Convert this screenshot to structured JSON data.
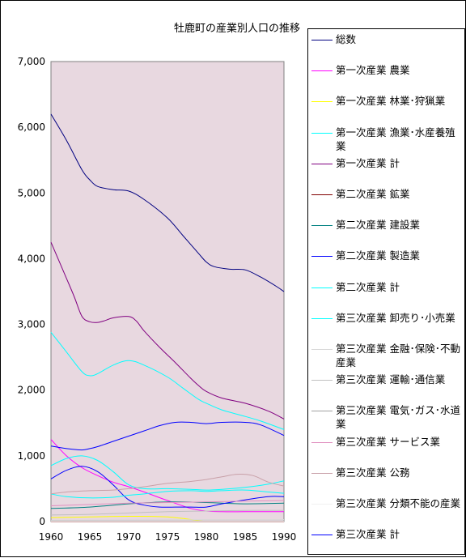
{
  "chart_data": {
    "type": "line",
    "title": "牡鹿町の産業別人口の推移",
    "xlabel": "",
    "ylabel": "",
    "x_ticks": [
      "1960",
      "1965",
      "1970",
      "1975",
      "1980",
      "1985",
      "1990"
    ],
    "y_ticks": [
      "0",
      "1,000",
      "2,000",
      "3,000",
      "4,000",
      "5,000",
      "6,000",
      "7,000"
    ],
    "xlim": [
      1960,
      1990
    ],
    "ylim": [
      0,
      7000
    ],
    "plot_background": "#e8d8e0",
    "legend_position": "right",
    "series": [
      {
        "name": "総数",
        "color": "#000080",
        "x": [
          1960,
          1962,
          1964,
          1965,
          1966,
          1968,
          1970,
          1972,
          1975,
          1977,
          1979,
          1980,
          1981,
          1983,
          1985,
          1987,
          1989,
          1990
        ],
        "values": [
          6200,
          5800,
          5350,
          5200,
          5100,
          5050,
          5030,
          4900,
          4620,
          4350,
          4080,
          3950,
          3880,
          3840,
          3830,
          3720,
          3580,
          3500
        ]
      },
      {
        "name": "第一次産業 農業",
        "color": "#ff00ff",
        "x": [
          1960,
          1962,
          1964,
          1966,
          1968,
          1970,
          1972,
          1975,
          1978,
          1980,
          1982,
          1985,
          1988,
          1990
        ],
        "values": [
          1250,
          1000,
          820,
          700,
          600,
          530,
          450,
          320,
          200,
          160,
          150,
          150,
          150,
          150
        ]
      },
      {
        "name": "第一次産業 林業･狩猟業",
        "color": "#ffff00",
        "x": [
          1960,
          1965,
          1970,
          1975,
          1980
        ],
        "values": [
          60,
          70,
          80,
          70,
          0
        ]
      },
      {
        "name": "第一次産業 漁業･水産養殖業",
        "color": "#00ffff",
        "x": [
          1960,
          1962,
          1964,
          1965,
          1966,
          1968,
          1970,
          1972,
          1975,
          1977,
          1979,
          1980,
          1982,
          1985,
          1987,
          1990
        ],
        "values": [
          2880,
          2580,
          2280,
          2220,
          2250,
          2380,
          2450,
          2380,
          2200,
          2030,
          1860,
          1800,
          1700,
          1600,
          1530,
          1400
        ]
      },
      {
        "name": "第一次産業 計",
        "color": "#800080",
        "x": [
          1960,
          1962,
          1963,
          1964,
          1965,
          1966,
          1967,
          1968,
          1970,
          1971,
          1972,
          1974,
          1976,
          1978,
          1979,
          1980,
          1982,
          1985,
          1988,
          1990
        ],
        "values": [
          4250,
          3700,
          3420,
          3120,
          3040,
          3030,
          3060,
          3100,
          3120,
          3050,
          2900,
          2650,
          2420,
          2180,
          2070,
          1980,
          1880,
          1800,
          1680,
          1560
        ]
      },
      {
        "name": "第二次産業 鉱業",
        "color": "#800000",
        "x": [
          1960,
          1970,
          1980,
          1990
        ],
        "values": [
          0,
          0,
          0,
          0
        ]
      },
      {
        "name": "第二次産業 建設業",
        "color": "#008080",
        "x": [
          1960,
          1965,
          1970,
          1975,
          1980,
          1985,
          1990
        ],
        "values": [
          200,
          220,
          270,
          300,
          290,
          270,
          280
        ]
      },
      {
        "name": "第二次産業 製造業",
        "color": "#0000ff",
        "x": [
          1960,
          1962,
          1964,
          1966,
          1968,
          1970,
          1972,
          1974,
          1976,
          1978,
          1980,
          1982,
          1985,
          1988,
          1990
        ],
        "values": [
          650,
          780,
          840,
          760,
          560,
          330,
          250,
          220,
          220,
          220,
          220,
          270,
          330,
          380,
          380
        ]
      },
      {
        "name": "第二次産業 計",
        "color": "#00ffff",
        "x": [
          1960,
          1962,
          1964,
          1966,
          1968,
          1970,
          1972,
          1975,
          1978,
          1980,
          1982,
          1985,
          1988,
          1990
        ],
        "values": [
          850,
          960,
          1000,
          930,
          760,
          560,
          500,
          500,
          490,
          480,
          490,
          520,
          570,
          620
        ]
      },
      {
        "name": "第三次産業 卸売り･小売業",
        "color": "#00ffff",
        "x": [
          1960,
          1962,
          1965,
          1968,
          1970,
          1972,
          1975,
          1978,
          1980,
          1982,
          1985,
          1988,
          1990
        ],
        "values": [
          420,
          380,
          360,
          370,
          400,
          420,
          460,
          470,
          460,
          470,
          480,
          450,
          430
        ]
      },
      {
        "name": "第三次産業 金融･保険･不動産業",
        "color": "#d8d8d8",
        "x": [
          1960,
          1970,
          1980,
          1990
        ],
        "values": [
          20,
          25,
          30,
          30
        ]
      },
      {
        "name": "第三次産業 運輸･通信業",
        "color": "#c0c0c0",
        "x": [
          1960,
          1965,
          1970,
          1975,
          1980,
          1985,
          1990
        ],
        "values": [
          100,
          110,
          130,
          150,
          160,
          170,
          170
        ]
      },
      {
        "name": "第三次産業 電気･ガス･水道業",
        "color": "#a0a0a0",
        "x": [
          1960,
          1970,
          1980,
          1990
        ],
        "values": [
          10,
          10,
          10,
          10
        ]
      },
      {
        "name": "第三次産業 サービス業",
        "color": "#e090c0",
        "x": [
          1960,
          1965,
          1970,
          1975,
          1980,
          1985,
          1990
        ],
        "values": [
          240,
          260,
          280,
          290,
          300,
          310,
          320
        ]
      },
      {
        "name": "第三次産業 公務",
        "color": "#c8a0a8",
        "x": [
          1960,
          1962,
          1965,
          1968,
          1970,
          1972,
          1975,
          1978,
          1980,
          1982,
          1984,
          1986,
          1988,
          1990
        ],
        "values": [
          420,
          450,
          470,
          480,
          500,
          530,
          580,
          610,
          640,
          680,
          720,
          700,
          600,
          540
        ]
      },
      {
        "name": "第三次産業 分類不能の産業",
        "color": "#f0f0f0",
        "x": [
          1960,
          1970,
          1980,
          1990
        ],
        "values": [
          5,
          5,
          5,
          5
        ]
      },
      {
        "name": "第三次産業 計",
        "color": "#0000ff",
        "x": [
          1960,
          1962,
          1964,
          1965,
          1966,
          1968,
          1970,
          1972,
          1974,
          1976,
          1978,
          1980,
          1982,
          1985,
          1987,
          1990
        ],
        "values": [
          1150,
          1110,
          1090,
          1110,
          1140,
          1220,
          1300,
          1380,
          1460,
          1510,
          1510,
          1490,
          1510,
          1510,
          1470,
          1310
        ]
      }
    ]
  }
}
